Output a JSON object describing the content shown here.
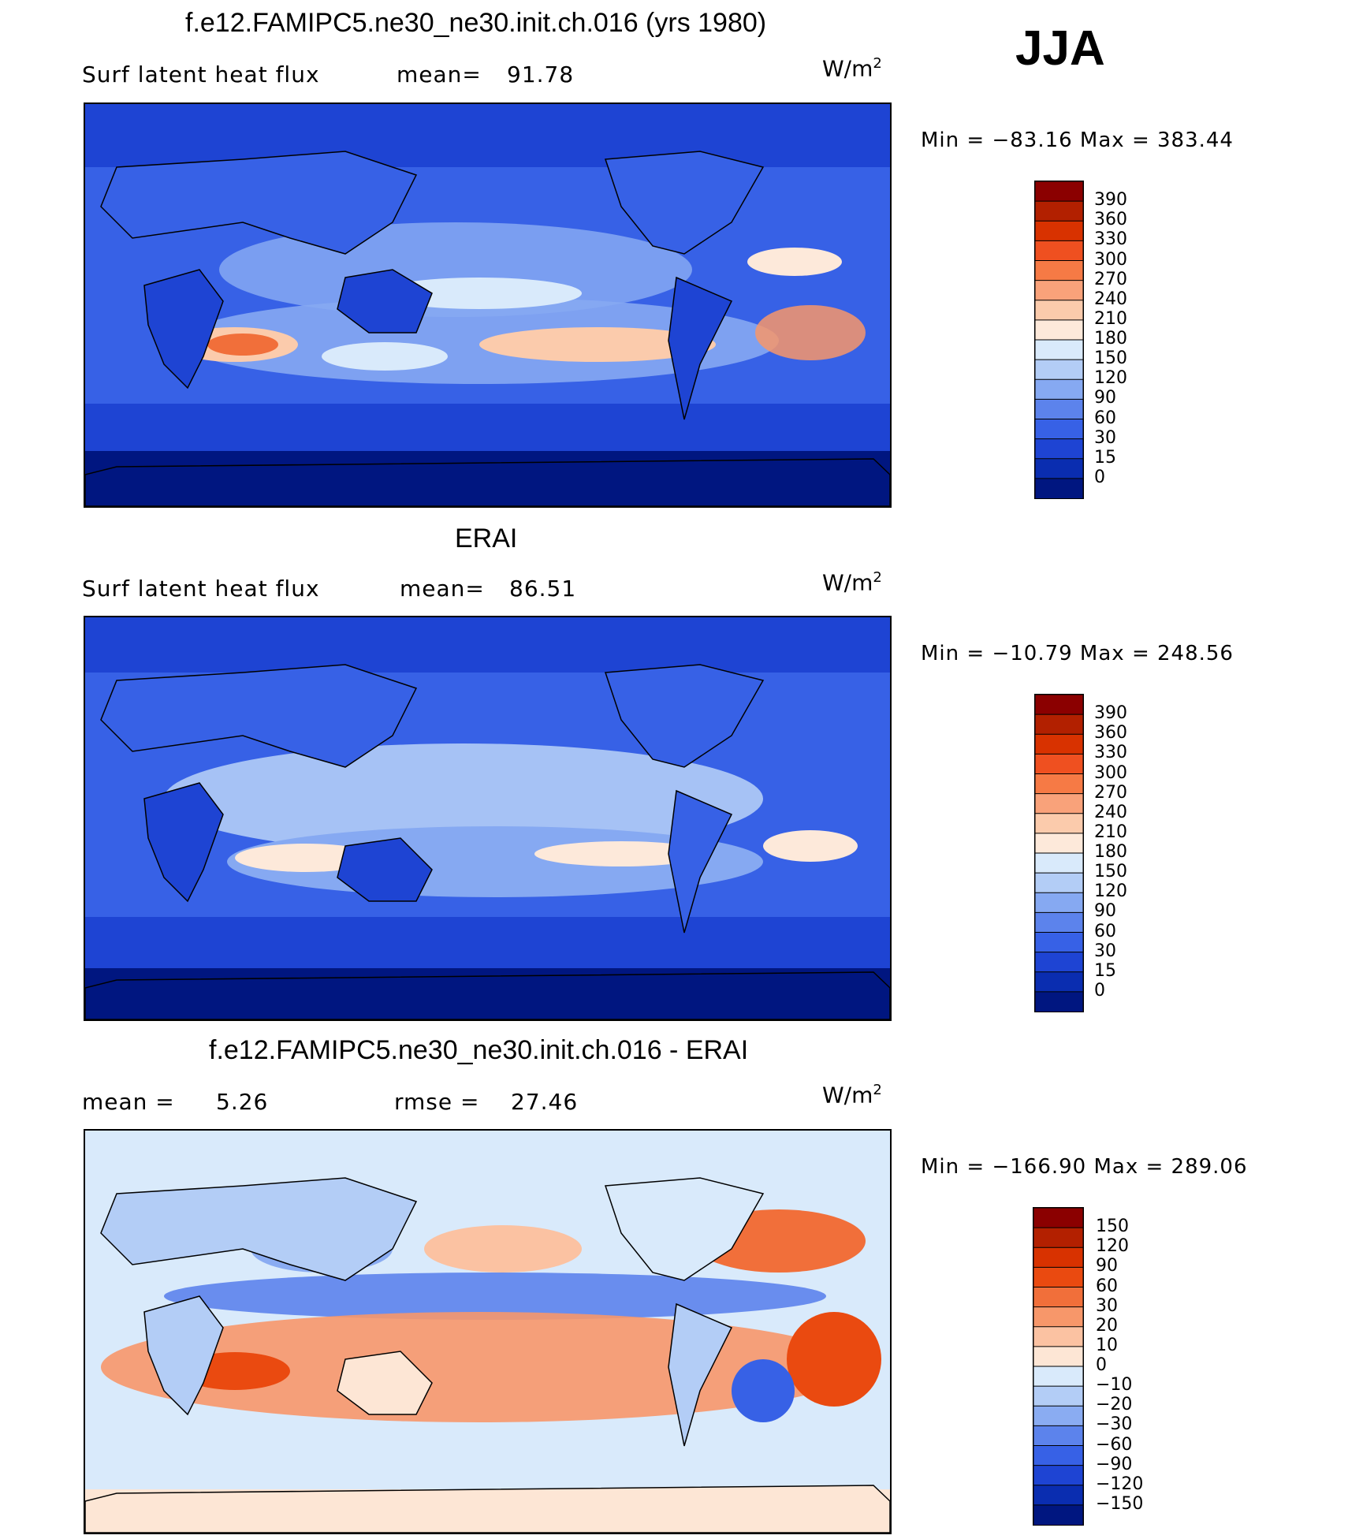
{
  "season": "JJA",
  "panels": [
    {
      "id": "model",
      "title": "f.e12.FAMIPC5.ne30_ne30.init.ch.016 (yrs 1980)",
      "left_label": "Surf  latent  heat  flux",
      "stat_label": "mean=",
      "stat_value": "91.78",
      "units_text": "W/m",
      "units_exp": "2",
      "minmax": "Min  =  −83.16  Max  =  383.44",
      "palette": "abs"
    },
    {
      "id": "obs",
      "title": "ERAI",
      "left_label": "Surf  latent  heat  flux",
      "stat_label": "mean=",
      "stat_value": "86.51",
      "units_text": "W/m",
      "units_exp": "2",
      "minmax": "Min  =  −10.79  Max  =  248.56",
      "palette": "abs"
    },
    {
      "id": "diff",
      "title": "f.e12.FAMIPC5.ne30_ne30.init.ch.016 - ERAI",
      "left_label": "mean  =",
      "left_value": "5.26",
      "stat_label": "rmse  =",
      "stat_value": "27.46",
      "units_text": "W/m",
      "units_exp": "2",
      "minmax": "Min  =  −166.90  Max  =  289.06",
      "palette": "diff"
    }
  ],
  "colorbars": {
    "abs_labels": [
      "390",
      "360",
      "330",
      "300",
      "270",
      "240",
      "210",
      "180",
      "150",
      "120",
      "90",
      "60",
      "30",
      "15",
      "0"
    ],
    "abs_colors": [
      "#8b0000",
      "#b22000",
      "#d83200",
      "#ef5020",
      "#f67a45",
      "#f9a27a",
      "#fbcbac",
      "#fde9da",
      "#d9eafb",
      "#b3cdf6",
      "#86a9f2",
      "#5c83ec",
      "#3761e6",
      "#1e44d3",
      "#0a2db0",
      "#001680"
    ],
    "diff_labels": [
      "150",
      "120",
      "90",
      "60",
      "30",
      "20",
      "10",
      "0",
      "−10",
      "−20",
      "−30",
      "−60",
      "−90",
      "−120",
      "−150"
    ],
    "diff_colors": [
      "#8b0000",
      "#b32000",
      "#d83200",
      "#ea4a10",
      "#f16f3a",
      "#f7976a",
      "#fbc2a2",
      "#fde6d5",
      "#d9eafb",
      "#b3cdf6",
      "#8aacf2",
      "#5c83ec",
      "#3761e6",
      "#1e44d3",
      "#0a2db0",
      "#001680"
    ]
  },
  "chart_data": [
    {
      "type": "heatmap",
      "title": "f.e12.FAMIPC5.ne30_ne30.init.ch.016 (yrs 1980)",
      "variable": "Surf latent heat flux",
      "units": "W/m2",
      "mean": 91.78,
      "min": -83.16,
      "max": 383.44,
      "contour_levels": [
        0,
        15,
        30,
        60,
        90,
        120,
        150,
        180,
        210,
        240,
        270,
        300,
        330,
        360,
        390
      ]
    },
    {
      "type": "heatmap",
      "title": "ERAI",
      "variable": "Surf latent heat flux",
      "units": "W/m2",
      "mean": 86.51,
      "min": -10.79,
      "max": 248.56,
      "contour_levels": [
        0,
        15,
        30,
        60,
        90,
        120,
        150,
        180,
        210,
        240,
        270,
        300,
        330,
        360,
        390
      ]
    },
    {
      "type": "heatmap",
      "title": "f.e12.FAMIPC5.ne30_ne30.init.ch.016 - ERAI",
      "units": "W/m2",
      "mean": 5.26,
      "rmse": 27.46,
      "min": -166.9,
      "max": 289.06,
      "contour_levels": [
        -150,
        -120,
        -90,
        -60,
        -30,
        -20,
        -10,
        0,
        10,
        20,
        30,
        60,
        90,
        120,
        150
      ]
    }
  ]
}
